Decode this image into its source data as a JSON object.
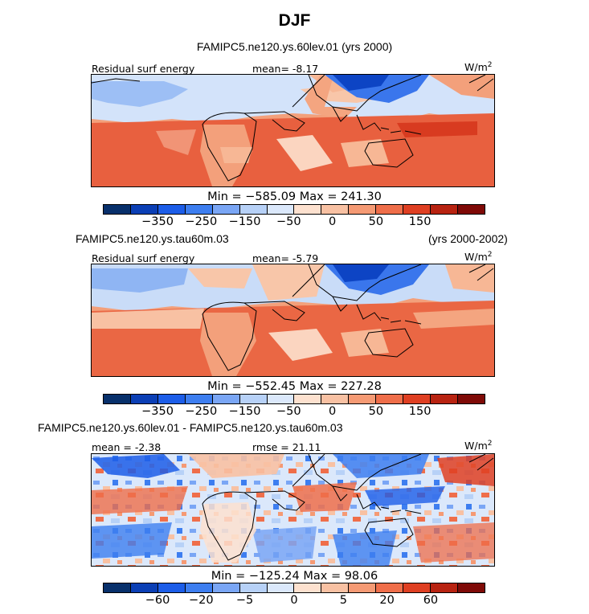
{
  "title": "DJF",
  "colors": [
    "#08306b",
    "#0b3fb5",
    "#1c5de8",
    "#3d7ef0",
    "#7aa6f5",
    "#b7d1f7",
    "#dbe8fb",
    "#fde1cf",
    "#f8c1a3",
    "#f59a74",
    "#ef6e4a",
    "#df3f22",
    "#b82311",
    "#7f0a07"
  ],
  "panels": [
    {
      "header_left": "FAMIPC5.ne120.ys.60lev.01 (yrs 2000)",
      "header_right": "",
      "field_label": "Residual surf energy",
      "stat_label": "mean=  -8.17",
      "stat2_label": "",
      "units": "W/m",
      "units_exp": "2",
      "minmax": "Min = −585.09  Max = 241.30",
      "ticks": [
        "−350",
        "−250",
        "−150",
        "−50",
        "0",
        "50",
        "150"
      ]
    },
    {
      "header_left": "FAMIPC5.ne120.ys.tau60m.03",
      "header_right": "(yrs 2000-2002)",
      "field_label": "Residual surf energy",
      "stat_label": "mean=  -5.79",
      "stat2_label": "",
      "units": "W/m",
      "units_exp": "2",
      "minmax": "Min = −552.45  Max = 227.28",
      "ticks": [
        "−350",
        "−250",
        "−150",
        "−50",
        "0",
        "50",
        "150"
      ]
    },
    {
      "header_left": "FAMIPC5.ne120.ys.60lev.01 - FAMIPC5.ne120.ys.tau60m.03",
      "header_right": "",
      "field_label": "",
      "stat_label": "mean =  -2.38",
      "stat2_label": "rmse =  21.11",
      "units": "W/m",
      "units_exp": "2",
      "minmax": "Min = −125.24  Max =  98.06",
      "ticks": [
        "−60",
        "−20",
        "−5",
        "0",
        "5",
        "20",
        "60"
      ]
    }
  ]
}
